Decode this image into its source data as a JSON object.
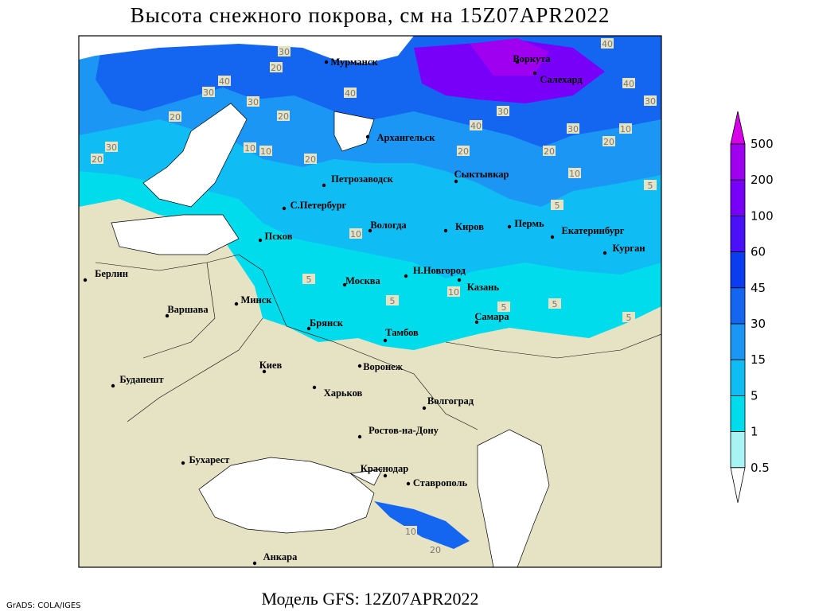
{
  "title": "Высота снежного покрова, см на 15Z07APR2022",
  "footer": "Модель GFS: 12Z07APR2022",
  "credit": "GrADS: COLA/IGES",
  "cities": [
    "Мурманск",
    "Воркута",
    "Салехард",
    "Архангельск",
    "Сыктывкар",
    "Петрозаводск",
    "С.Петербург",
    "Вологда",
    "Киров",
    "Пермь",
    "Екатеринбург",
    "Курган",
    "Псков",
    "Н.Новгород",
    "Казань",
    "Москва",
    "Берлин",
    "Варшава",
    "Минск",
    "Брянск",
    "Тамбов",
    "Самара",
    "Киев",
    "Воронеж",
    "Харьков",
    "Будапешт",
    "Волгоград",
    "Ростов-на-Дону",
    "Бухарест",
    "Краснодар",
    "Ставрополь",
    "Анкара"
  ],
  "contour_labels": [
    30,
    20,
    40,
    30,
    20,
    30,
    20,
    10,
    10,
    30,
    20,
    40,
    20,
    20,
    40,
    30,
    20,
    30,
    10,
    5,
    20,
    40,
    30,
    10,
    40,
    10,
    5,
    5,
    10,
    5,
    5,
    5,
    10,
    20,
    5
  ],
  "legend": {
    "levels": [
      500,
      200,
      100,
      60,
      45,
      30,
      15,
      5,
      1,
      0.5
    ],
    "colors": [
      "#d800e8",
      "#a000f0",
      "#7800f8",
      "#4a10f8",
      "#0a3cf0",
      "#1466f0",
      "#1c96f4",
      "#10bcf4",
      "#00dcec",
      "#a8f4f4",
      "#ffffff"
    ]
  }
}
